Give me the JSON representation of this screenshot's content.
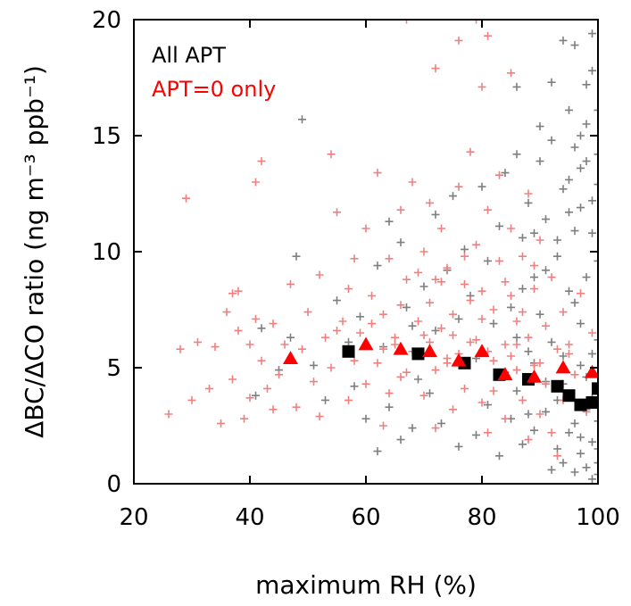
{
  "chart_data": {
    "type": "scatter",
    "xlabel": "maximum RH (%)",
    "ylabel": "ΔBC/ΔCO ratio (ng m⁻³ ppb⁻¹)",
    "xlim": [
      20,
      100
    ],
    "ylim": [
      0,
      20
    ],
    "x_ticks": [
      "20",
      "40",
      "60",
      "80",
      "100"
    ],
    "y_ticks": [
      "0",
      "5",
      "10",
      "15",
      "20"
    ],
    "grid": false,
    "legend_position": "top-left",
    "legend": [
      {
        "label": "All APT",
        "color": "#000000"
      },
      {
        "label": "APT=0 only",
        "color": "#ff0000"
      }
    ],
    "series": [
      {
        "name": "All APT",
        "marker": "cross",
        "color": "#7f7f7f",
        "points": [
          [
            49,
            15.7
          ],
          [
            48,
            9.8
          ],
          [
            55,
            7.9
          ],
          [
            62,
            9.4
          ],
          [
            64,
            11.3
          ],
          [
            66,
            10.4
          ],
          [
            68,
            6.8
          ],
          [
            70,
            8.5
          ],
          [
            72,
            11.6
          ],
          [
            74,
            9.2
          ],
          [
            75,
            12.4
          ],
          [
            77,
            10.1
          ],
          [
            78,
            8.1
          ],
          [
            80,
            12.8
          ],
          [
            81,
            9.6
          ],
          [
            83,
            11.1
          ],
          [
            84,
            13.4
          ],
          [
            85,
            7.6
          ],
          [
            86,
            14.2
          ],
          [
            87,
            10.6
          ],
          [
            88,
            12.1
          ],
          [
            89,
            8.9
          ],
          [
            90,
            13.9
          ],
          [
            91,
            11.4
          ],
          [
            92,
            14.8
          ],
          [
            93,
            9.8
          ],
          [
            94,
            12.7
          ],
          [
            95,
            16.1
          ],
          [
            96,
            10.9
          ],
          [
            97,
            13.6
          ],
          [
            98,
            15.5
          ],
          [
            99,
            17.8
          ],
          [
            100,
            12.9
          ],
          [
            96,
            18.9
          ],
          [
            99,
            19.4
          ],
          [
            92,
            17.3
          ],
          [
            86,
            17.1
          ],
          [
            94,
            19.1
          ],
          [
            98,
            17.2
          ],
          [
            90,
            15.4
          ],
          [
            100,
            14.2
          ],
          [
            95,
            8.3
          ],
          [
            97,
            6.9
          ],
          [
            99,
            5.6
          ],
          [
            100,
            4.1
          ],
          [
            98,
            3.2
          ],
          [
            96,
            2.6
          ],
          [
            99,
            1.8
          ],
          [
            100,
            0.9
          ],
          [
            97,
            1.3
          ],
          [
            95,
            2.2
          ],
          [
            93,
            1.5
          ],
          [
            100,
            2.7
          ],
          [
            99,
            3.7
          ],
          [
            98,
            4.6
          ],
          [
            100,
            6.2
          ],
          [
            97,
            5.1
          ],
          [
            94,
            4.3
          ],
          [
            91,
            3.1
          ],
          [
            89,
            2.3
          ],
          [
            87,
            1.7
          ],
          [
            85,
            2.8
          ],
          [
            83,
            1.2
          ],
          [
            81,
            3.4
          ],
          [
            79,
            2.1
          ],
          [
            76,
            1.6
          ],
          [
            73,
            2.6
          ],
          [
            71,
            3.9
          ],
          [
            68,
            2.4
          ],
          [
            66,
            1.9
          ],
          [
            64,
            3.3
          ],
          [
            62,
            1.4
          ],
          [
            60,
            2.8
          ],
          [
            58,
            4.2
          ],
          [
            53,
            3.6
          ],
          [
            51,
            5.1
          ],
          [
            47,
            6.3
          ],
          [
            45,
            4.9
          ],
          [
            42,
            6.7
          ],
          [
            41,
            3.8
          ],
          [
            57,
            6.1
          ],
          [
            59,
            7.2
          ],
          [
            63,
            5.9
          ],
          [
            67,
            7.6
          ],
          [
            69,
            4.5
          ],
          [
            72,
            6.6
          ],
          [
            76,
            7.1
          ],
          [
            79,
            5.4
          ],
          [
            82,
            6.9
          ],
          [
            84,
            4.8
          ],
          [
            86,
            6.3
          ],
          [
            88,
            5.7
          ],
          [
            90,
            7.3
          ],
          [
            92,
            6.1
          ],
          [
            94,
            5.5
          ],
          [
            96,
            7.8
          ],
          [
            98,
            8.9
          ],
          [
            100,
            9.6
          ],
          [
            99,
            10.8
          ],
          [
            97,
            11.9
          ],
          [
            95,
            13.1
          ],
          [
            100,
            0.4
          ],
          [
            98,
            0.7
          ],
          [
            96,
            0.5
          ],
          [
            94,
            0.9
          ],
          [
            92,
            0.6
          ],
          [
            99,
            0.2
          ],
          [
            97,
            2.0
          ],
          [
            100,
            1.5
          ],
          [
            93,
            3.6
          ],
          [
            91,
            4.4
          ],
          [
            89,
            5.2
          ],
          [
            88,
            3.0
          ],
          [
            86,
            4.0
          ],
          [
            99,
            12.2
          ],
          [
            100,
            16.1
          ],
          [
            98,
            13.9
          ],
          [
            97,
            15.0
          ],
          [
            96,
            14.5
          ],
          [
            95,
            11.7
          ],
          [
            93,
            10.5
          ],
          [
            91,
            9.2
          ],
          [
            89,
            10.8
          ],
          [
            87,
            8.4
          ]
        ]
      },
      {
        "name": "APT=0 only",
        "marker": "cross",
        "color": "#f08080",
        "points": [
          [
            26,
            3.0
          ],
          [
            28,
            5.8
          ],
          [
            29,
            12.3
          ],
          [
            30,
            3.6
          ],
          [
            31,
            6.1
          ],
          [
            33,
            4.1
          ],
          [
            34,
            5.9
          ],
          [
            35,
            2.6
          ],
          [
            36,
            7.4
          ],
          [
            37,
            8.2
          ],
          [
            37,
            4.5
          ],
          [
            38,
            6.6
          ],
          [
            38,
            8.3
          ],
          [
            39,
            2.8
          ],
          [
            40,
            6.0
          ],
          [
            40,
            3.7
          ],
          [
            41,
            13.0
          ],
          [
            41,
            7.1
          ],
          [
            42,
            13.9
          ],
          [
            42,
            5.3
          ],
          [
            43,
            4.1
          ],
          [
            44,
            6.9
          ],
          [
            45,
            4.7
          ],
          [
            46,
            6.0
          ],
          [
            47,
            8.6
          ],
          [
            48,
            3.3
          ],
          [
            49,
            5.8
          ],
          [
            50,
            7.4
          ],
          [
            51,
            4.4
          ],
          [
            52,
            9.0
          ],
          [
            53,
            6.3
          ],
          [
            54,
            5.0
          ],
          [
            54,
            14.2
          ],
          [
            55,
            11.7
          ],
          [
            56,
            7.0
          ],
          [
            57,
            3.6
          ],
          [
            58,
            9.7
          ],
          [
            59,
            6.5
          ],
          [
            60,
            4.3
          ],
          [
            60,
            11.0
          ],
          [
            61,
            8.1
          ],
          [
            62,
            5.2
          ],
          [
            62,
            13.4
          ],
          [
            63,
            7.3
          ],
          [
            64,
            3.9
          ],
          [
            64,
            9.7
          ],
          [
            65,
            6.3
          ],
          [
            66,
            11.8
          ],
          [
            66,
            4.6
          ],
          [
            67,
            8.8
          ],
          [
            68,
            5.7
          ],
          [
            68,
            13.0
          ],
          [
            69,
            7.0
          ],
          [
            70,
            3.8
          ],
          [
            70,
            10.0
          ],
          [
            71,
            6.1
          ],
          [
            71,
            12.1
          ],
          [
            72,
            4.9
          ],
          [
            72,
            8.8
          ],
          [
            73,
            6.7
          ],
          [
            73,
            11.0
          ],
          [
            74,
            5.4
          ],
          [
            74,
            9.3
          ],
          [
            75,
            3.2
          ],
          [
            75,
            7.3
          ],
          [
            76,
            12.8
          ],
          [
            76,
            5.6
          ],
          [
            77,
            9.8
          ],
          [
            77,
            4.1
          ],
          [
            78,
            7.9
          ],
          [
            78,
            14.3
          ],
          [
            79,
            6.2
          ],
          [
            79,
            10.3
          ],
          [
            80,
            3.5
          ],
          [
            80,
            8.3
          ],
          [
            80,
            17.1
          ],
          [
            81,
            5.7
          ],
          [
            81,
            11.8
          ],
          [
            82,
            7.5
          ],
          [
            82,
            4.0
          ],
          [
            83,
            9.6
          ],
          [
            83,
            13.3
          ],
          [
            84,
            6.0
          ],
          [
            84,
            2.8
          ],
          [
            85,
            8.1
          ],
          [
            85,
            11.0
          ],
          [
            86,
            4.9
          ],
          [
            86,
            7.0
          ],
          [
            87,
            9.8
          ],
          [
            87,
            3.6
          ],
          [
            88,
            6.3
          ],
          [
            88,
            12.5
          ],
          [
            89,
            5.1
          ],
          [
            89,
            8.4
          ],
          [
            90,
            3.0
          ],
          [
            90,
            10.5
          ],
          [
            91,
            6.8
          ],
          [
            91,
            4.3
          ],
          [
            92,
            8.9
          ],
          [
            92,
            2.2
          ],
          [
            93,
            5.8
          ],
          [
            94,
            7.4
          ],
          [
            94,
            3.6
          ],
          [
            95,
            6.0
          ],
          [
            96,
            4.7
          ],
          [
            97,
            8.2
          ],
          [
            98,
            3.1
          ],
          [
            99,
            6.5
          ],
          [
            100,
            5.0
          ],
          [
            76,
            19.1
          ],
          [
            81,
            19.3
          ],
          [
            79,
            20.0
          ],
          [
            67,
            20.0
          ],
          [
            72,
            17.9
          ],
          [
            85,
            17.7
          ],
          [
            58,
            5.3
          ],
          [
            63,
            5.8
          ],
          [
            67,
            4.8
          ],
          [
            70,
            6.4
          ],
          [
            74,
            5.2
          ],
          [
            78,
            6.1
          ],
          [
            82,
            5.3
          ],
          [
            86,
            6.0
          ],
          [
            90,
            5.2
          ],
          [
            55,
            6.6
          ],
          [
            65,
            6.0
          ],
          [
            75,
            6.4
          ],
          [
            85,
            5.5
          ],
          [
            95,
            5.6
          ],
          [
            44,
            3.2
          ],
          [
            52,
            2.9
          ],
          [
            63,
            2.5
          ],
          [
            72,
            2.4
          ],
          [
            81,
            2.2
          ],
          [
            88,
            1.9
          ],
          [
            93,
            1.2
          ],
          [
            57,
            8.4
          ],
          [
            69,
            9.1
          ],
          [
            73,
            8.7
          ],
          [
            77,
            8.6
          ],
          [
            84,
            8.7
          ],
          [
            89,
            9.4
          ],
          [
            61,
            6.9
          ],
          [
            66,
            7.7
          ],
          [
            71,
            7.8
          ],
          [
            80,
            7.1
          ],
          [
            87,
            7.4
          ]
        ]
      },
      {
        "name": "All APT",
        "marker": "square",
        "color": "#000000",
        "points": [
          [
            57,
            5.7
          ],
          [
            69,
            5.6
          ],
          [
            77,
            5.2
          ],
          [
            83,
            4.7
          ],
          [
            88,
            4.5
          ],
          [
            93,
            4.2
          ],
          [
            95,
            3.8
          ],
          [
            97,
            3.4
          ],
          [
            99,
            3.5
          ],
          [
            100,
            4.1
          ]
        ]
      },
      {
        "name": "APT=0 only",
        "marker": "triangle",
        "color": "#ff0000",
        "points": [
          [
            47,
            5.4
          ],
          [
            60,
            6.0
          ],
          [
            66,
            5.8
          ],
          [
            71,
            5.7
          ],
          [
            76,
            5.3
          ],
          [
            80,
            5.7
          ],
          [
            84,
            4.7
          ],
          [
            89,
            4.6
          ],
          [
            94,
            5.0
          ],
          [
            99,
            4.8
          ]
        ]
      }
    ]
  }
}
